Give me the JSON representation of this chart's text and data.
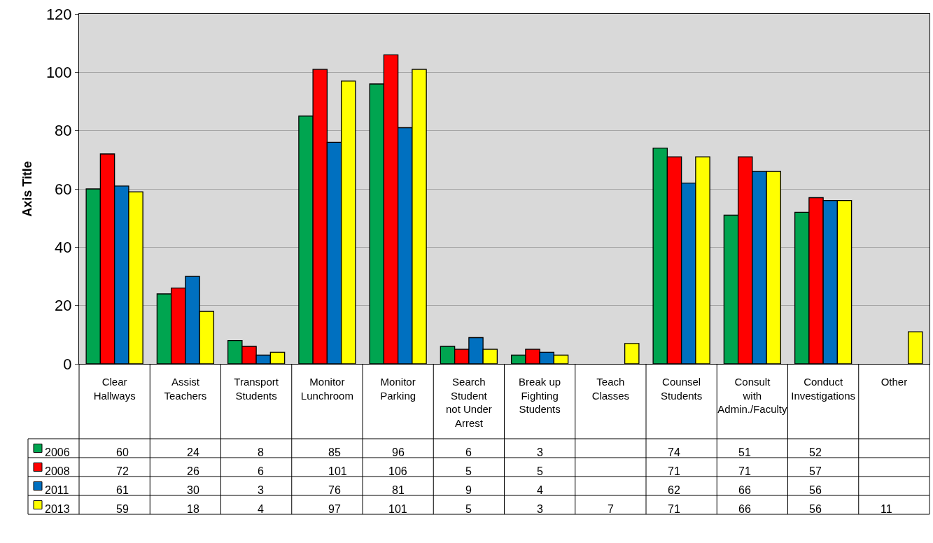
{
  "chart_data": {
    "type": "bar",
    "ylabel": "Axis Title",
    "categories": [
      "Clear Hallways",
      "Assist Teachers",
      "Transport Students",
      "Monitor Lunchroom",
      "Monitor Parking",
      "Search Student not Under Arrest",
      "Break up Fighting Students",
      "Teach Classes",
      "Counsel Students",
      "Consult with Admin./Faculty",
      "Conduct Investigations",
      "Other"
    ],
    "series": [
      {
        "name": "2006",
        "color": "#00a550",
        "values": [
          60,
          24,
          8,
          85,
          96,
          6,
          3,
          null,
          74,
          51,
          52,
          null
        ]
      },
      {
        "name": "2008",
        "color": "#ff0000",
        "values": [
          72,
          26,
          6,
          101,
          106,
          5,
          5,
          null,
          71,
          71,
          57,
          null
        ]
      },
      {
        "name": "2011",
        "color": "#0070c0",
        "values": [
          61,
          30,
          3,
          76,
          81,
          9,
          4,
          null,
          62,
          66,
          56,
          null
        ]
      },
      {
        "name": "2013",
        "color": "#ffff00",
        "values": [
          59,
          18,
          4,
          97,
          101,
          5,
          3,
          7,
          71,
          66,
          56,
          11
        ]
      }
    ],
    "ylim": [
      0,
      120
    ],
    "yticks": [
      0,
      20,
      40,
      60,
      80,
      100,
      120
    ],
    "grid": "y",
    "legend": "bottom left",
    "data_labels": true
  }
}
